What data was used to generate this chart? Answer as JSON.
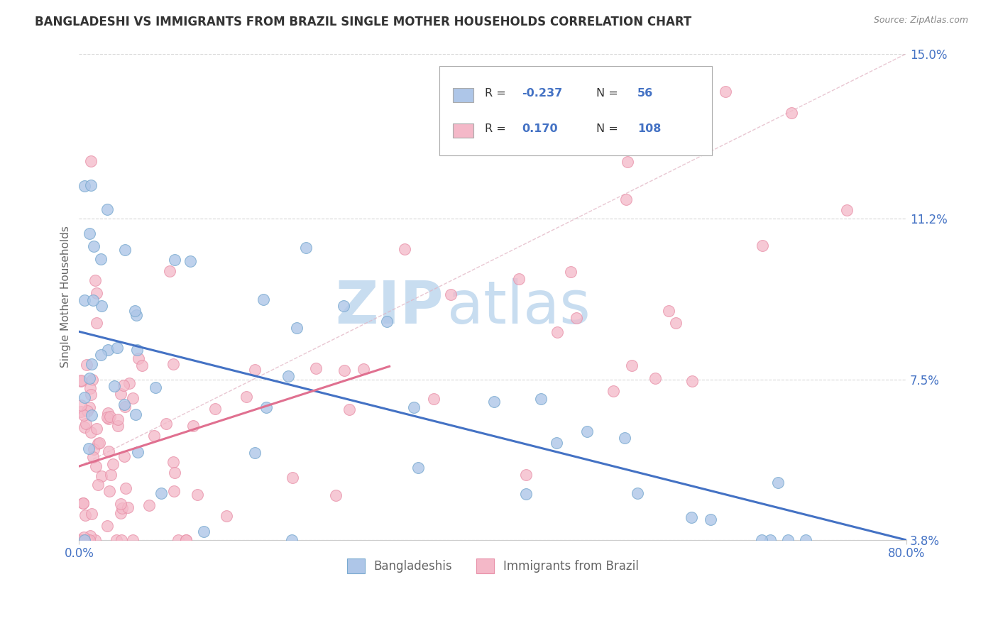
{
  "title": "BANGLADESHI VS IMMIGRANTS FROM BRAZIL SINGLE MOTHER HOUSEHOLDS CORRELATION CHART",
  "source_text": "Source: ZipAtlas.com",
  "ylabel": "Single Mother Households",
  "x_min": 0.0,
  "x_max": 80.0,
  "y_min": 3.8,
  "y_max": 15.0,
  "y_ticks": [
    3.8,
    7.5,
    11.2,
    15.0
  ],
  "blue_color": "#4472c4",
  "pink_color": "#e07090",
  "blue_dot_color": "#aec6e8",
  "pink_dot_color": "#f4b8c8",
  "blue_dot_edge": "#7aaad0",
  "pink_dot_edge": "#e890a8",
  "trend_blue_start_x": 0.0,
  "trend_blue_start_y": 8.6,
  "trend_blue_end_x": 80.0,
  "trend_blue_end_y": 3.8,
  "trend_pink_start_x": 0.0,
  "trend_pink_start_y": 5.5,
  "trend_pink_end_x": 30.0,
  "trend_pink_end_y": 7.8,
  "diag_dash_start_x": 0.0,
  "diag_dash_start_y": 5.5,
  "diag_dash_end_x": 80.0,
  "diag_dash_end_y": 15.0,
  "watermark_zip": "ZIP",
  "watermark_atlas": "atlas",
  "watermark_color": "#c8ddf0",
  "background_color": "#ffffff",
  "grid_color": "#d8d8d8",
  "title_color": "#333333",
  "axis_label_color": "#666666",
  "tick_label_color": "#4472c4",
  "legend_R1": "-0.237",
  "legend_N1": "56",
  "legend_R2": "0.170",
  "legend_N2": "108",
  "seed": 42
}
